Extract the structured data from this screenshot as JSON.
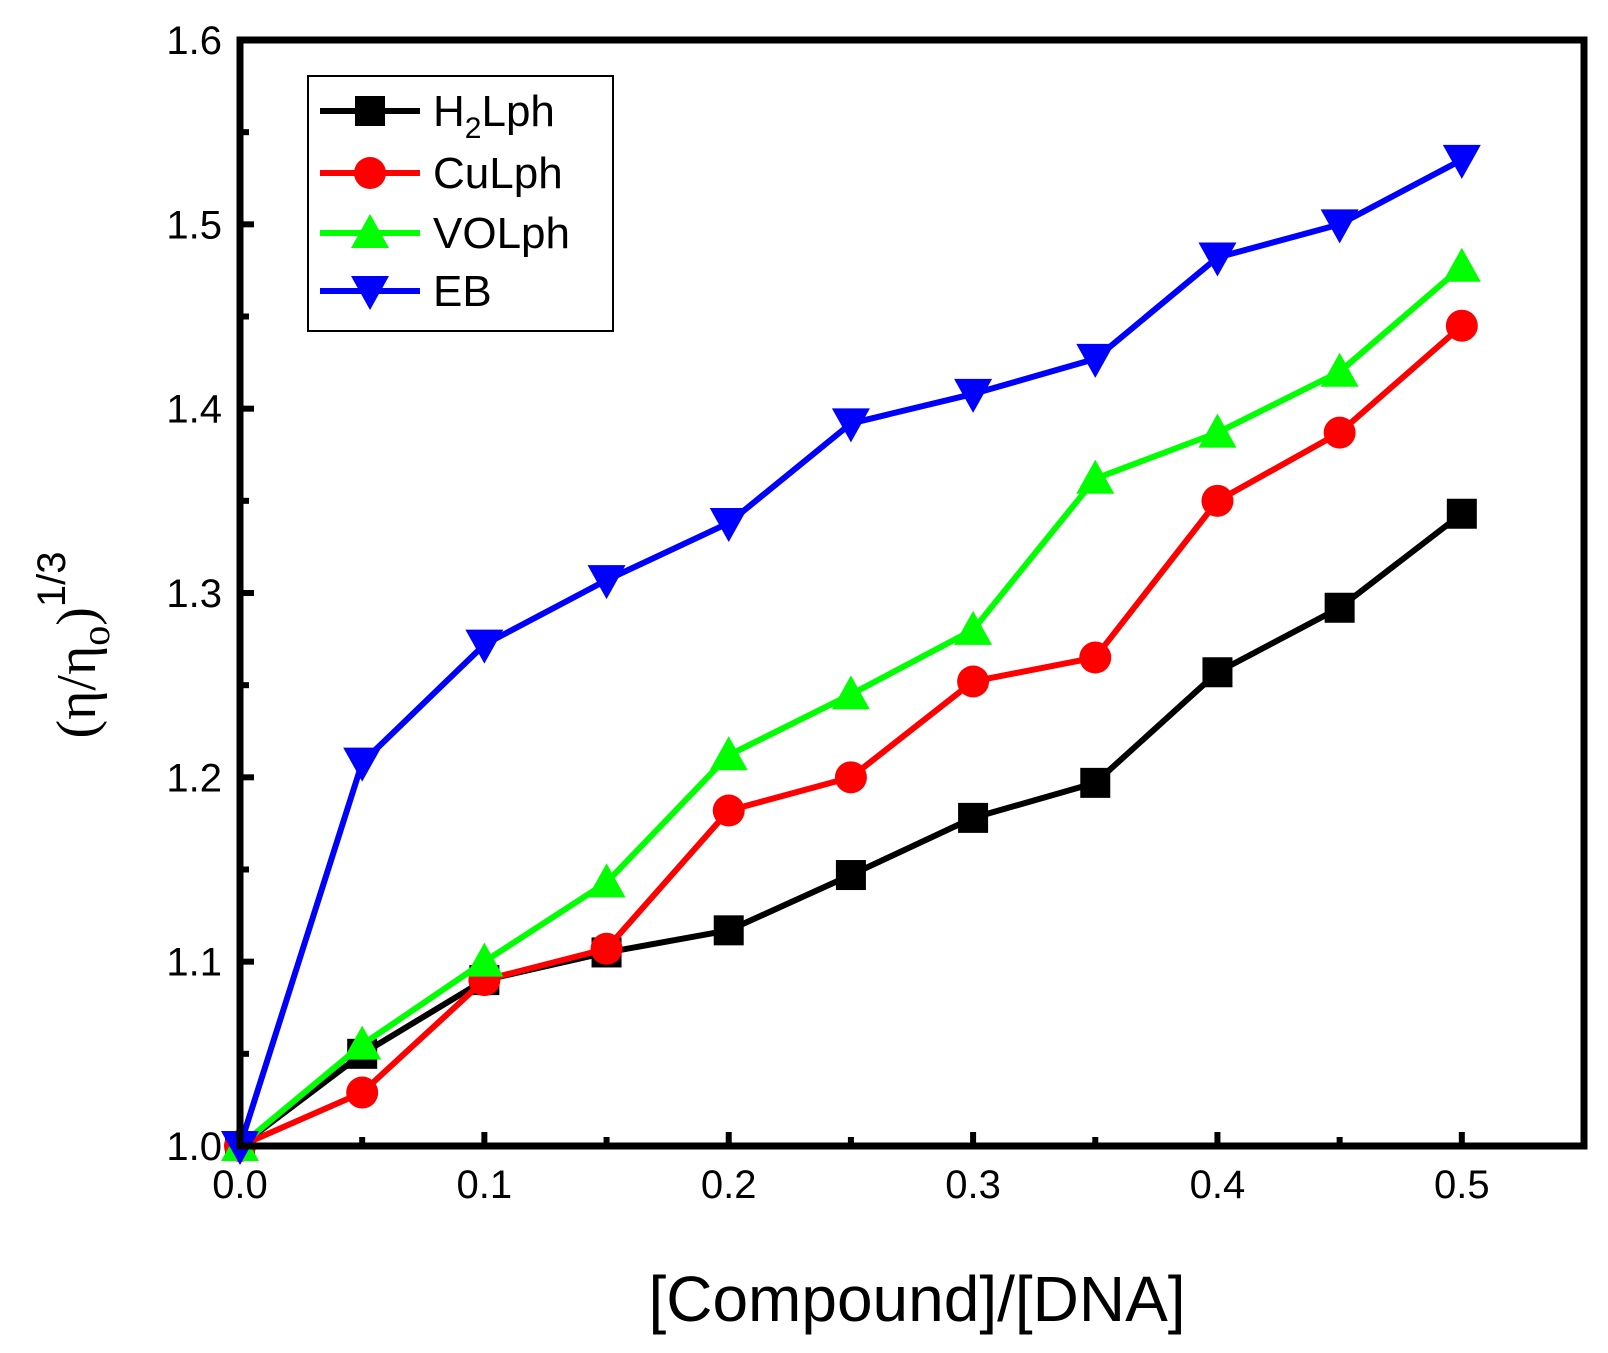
{
  "chart_data": {
    "type": "line",
    "xlabel": "[Compound]/[DNA]",
    "ylabel": {
      "open": "(η/η",
      "sub": "o",
      "close": ")",
      "sup": "1/3"
    },
    "xlim": [
      0.0,
      0.55
    ],
    "ylim": [
      1.0,
      1.6
    ],
    "xticks": [
      0.0,
      0.1,
      0.2,
      0.3,
      0.4,
      0.5
    ],
    "xtick_labels": [
      "0.0",
      "0.1",
      "0.2",
      "0.3",
      "0.4",
      "0.5"
    ],
    "yticks": [
      1.0,
      1.1,
      1.2,
      1.3,
      1.4,
      1.5,
      1.6
    ],
    "ytick_labels": [
      "1.0",
      "1.1",
      "1.2",
      "1.3",
      "1.4",
      "1.5",
      "1.6"
    ],
    "legend_position": "top-left",
    "grid": false,
    "x": [
      0.0,
      0.05,
      0.1,
      0.15,
      0.2,
      0.25,
      0.3,
      0.35,
      0.4,
      0.45,
      0.5
    ],
    "series": [
      {
        "name": "H2Lph",
        "label_main": "H",
        "label_sub": "2",
        "label_rest": "Lph",
        "color": "#000000",
        "marker": "square",
        "values": [
          1.0,
          1.05,
          1.09,
          1.105,
          1.117,
          1.147,
          1.178,
          1.197,
          1.257,
          1.292,
          1.343
        ]
      },
      {
        "name": "CuLph",
        "label_main": "CuLph",
        "label_sub": "",
        "label_rest": "",
        "color": "#ff0000",
        "marker": "circle",
        "values": [
          1.0,
          1.029,
          1.09,
          1.107,
          1.182,
          1.2,
          1.252,
          1.265,
          1.35,
          1.387,
          1.445
        ]
      },
      {
        "name": "VOLph",
        "label_main": "VOLph",
        "label_sub": "",
        "label_rest": "",
        "color": "#00ff00",
        "marker": "triangle-up",
        "values": [
          1.0,
          1.055,
          1.1,
          1.143,
          1.212,
          1.245,
          1.28,
          1.362,
          1.387,
          1.42,
          1.477
        ]
      },
      {
        "name": "EB",
        "label_main": "EB",
        "label_sub": "",
        "label_rest": "",
        "color": "#0000ff",
        "marker": "triangle-down",
        "values": [
          1.0,
          1.208,
          1.272,
          1.307,
          1.338,
          1.392,
          1.408,
          1.427,
          1.482,
          1.5,
          1.535
        ]
      }
    ]
  }
}
